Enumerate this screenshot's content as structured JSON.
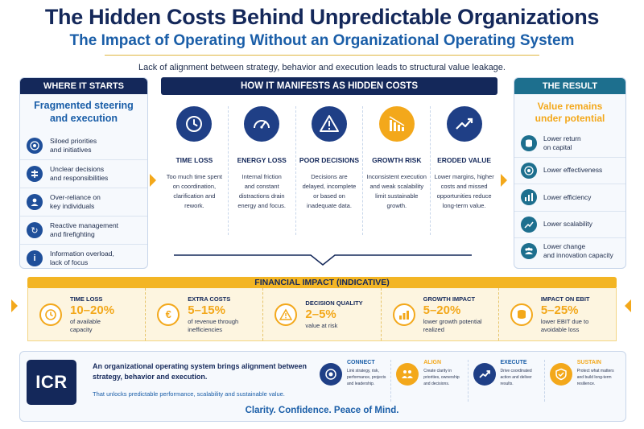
{
  "title": "The Hidden Costs Behind Unpredictable Organizations",
  "subtitle": "The Impact of Operating Without an Organizational Operating System",
  "lead": "Lack of alignment between strategy, behavior and execution leads to structural value leakage.",
  "left": {
    "heading": "WHERE IT STARTS",
    "subheading_line1": "Fragmented steering",
    "subheading_line2": "and execution",
    "items": [
      {
        "line1": "Siloed priorities",
        "line2": "and initiatives",
        "icon": "target-icon"
      },
      {
        "line1": "Unclear decisions",
        "line2": "and responsibilities",
        "icon": "signpost-icon"
      },
      {
        "line1": "Over-reliance on",
        "line2": "key individuals",
        "icon": "person-icon"
      },
      {
        "line1": "Reactive management",
        "line2": "and firefighting",
        "icon": "refresh-icon"
      },
      {
        "line1": "Information overload,",
        "line2": "lack of focus",
        "icon": "info-icon"
      }
    ]
  },
  "middle": {
    "heading": "HOW IT MANIFESTS AS HIDDEN COSTS",
    "columns": [
      {
        "label": "TIME LOSS",
        "d1": "Too much time spent",
        "d2": "on coordination,",
        "d3": "clarification and",
        "d4": "rework.",
        "icon": "clock-icon"
      },
      {
        "label": "ENERGY LOSS",
        "d1": "Internal friction",
        "d2": "and constant",
        "d3": "distractions drain",
        "d4": "energy and focus.",
        "icon": "gauge-icon"
      },
      {
        "label": "POOR DECISIONS",
        "d1": "Decisions are",
        "d2": "delayed, incomplete",
        "d3": "or based on",
        "d4": "inadequate data.",
        "icon": "warning-icon"
      },
      {
        "label": "GROWTH RISK",
        "d1": "Inconsistent execution",
        "d2": "and weak scalability",
        "d3": "limit sustainable",
        "d4": "growth.",
        "icon": "declining-chart-icon"
      },
      {
        "label": "ERODED VALUE",
        "d1": "Lower margins, higher",
        "d2": "costs and missed",
        "d3": "opportunities reduce",
        "d4": "long-term value.",
        "icon": "trend-line-icon"
      }
    ]
  },
  "right": {
    "heading": "THE RESULT",
    "subheading_line1": "Value remains",
    "subheading_line2": "under potential",
    "items": [
      {
        "line1": "Lower return",
        "line2": "on capital",
        "icon": "coins-icon"
      },
      {
        "line1": "Lower effectiveness",
        "line2": "",
        "icon": "target-icon"
      },
      {
        "line1": "Lower efficiency",
        "line2": "",
        "icon": "bar-chart-icon"
      },
      {
        "line1": "Lower scalability",
        "line2": "",
        "icon": "growth-chart-icon"
      },
      {
        "line1": "Lower change",
        "line2": "and innovation capacity",
        "icon": "team-icon"
      }
    ]
  },
  "financial": {
    "heading": "FINANCIAL IMPACT (INDICATIVE)",
    "items": [
      {
        "label": "TIME LOSS",
        "value": "10–20%",
        "d1": "of available",
        "d2": "capacity",
        "icon": "clock-icon"
      },
      {
        "label": "EXTRA COSTS",
        "value": "5–15%",
        "d1": "of revenue through",
        "d2": "inefficiencies",
        "icon": "euro-icon"
      },
      {
        "label": "DECISION QUALITY",
        "value": "2–5%",
        "d1": "value at risk",
        "d2": "",
        "icon": "warning-icon"
      },
      {
        "label": "GROWTH IMPACT",
        "value": "5–20%",
        "d1": "lower growth potential",
        "d2": "realized",
        "icon": "bar-chart-icon"
      },
      {
        "label": "IMPACT ON EBIT",
        "value": "5–25%",
        "d1": "lower EBIT due to",
        "d2": "avoidable loss",
        "icon": "coins-icon"
      }
    ]
  },
  "bottom": {
    "logo": "ICR",
    "main_line1": "An organizational operating system brings alignment between",
    "main_line2": "strategy, behavior and execution.",
    "sub": "That unlocks predictable performance, scalability and sustainable value.",
    "steps": [
      {
        "label": "CONNECT",
        "d1": "Link strategy, risk,",
        "d2": "performance, projects",
        "d3": "and leadership.",
        "icon": "target-icon"
      },
      {
        "label": "ALIGN",
        "d1": "Create clarity in",
        "d2": "priorities, ownership",
        "d3": "and decisions.",
        "icon": "people-icon"
      },
      {
        "label": "EXECUTE",
        "d1": "Drive coordinated",
        "d2": "action and deliver",
        "d3": "results.",
        "icon": "growth-chart-icon"
      },
      {
        "label": "SUSTAIN",
        "d1": "Protect what matters",
        "d2": "and build long-term",
        "d3": "resilience.",
        "icon": "shield-icon"
      }
    ],
    "tagline": "Clarity. Confidence. Peace of Mind."
  },
  "colors": {
    "navy": "#14285a",
    "blue": "#1a5ea8",
    "orange": "#f3a81b",
    "teal": "#1d6f8e"
  }
}
